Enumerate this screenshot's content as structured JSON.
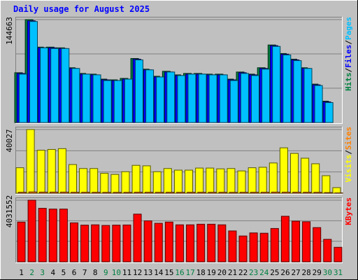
{
  "chart_data": {
    "type": "bar",
    "title": "Daily usage for August 2025",
    "categories": [
      "1",
      "2",
      "3",
      "4",
      "5",
      "6",
      "7",
      "8",
      "9",
      "10",
      "11",
      "12",
      "13",
      "14",
      "15",
      "16",
      "17",
      "18",
      "19",
      "20",
      "21",
      "22",
      "23",
      "24",
      "25",
      "26",
      "27",
      "28",
      "29",
      "30",
      "31"
    ],
    "weekend_days": [
      "2",
      "3",
      "9",
      "10",
      "16",
      "17",
      "23",
      "24",
      "30",
      "31"
    ],
    "panels": [
      {
        "id": "requests",
        "max_label": "144663",
        "ymax": 144663,
        "series": [
          {
            "name": "Hits",
            "color": "#008040",
            "values": [
              70000,
              144663,
              106000,
              106000,
              105000,
              77000,
              69000,
              68000,
              61000,
              60000,
              62000,
              90000,
              75000,
              65000,
              72000,
              67000,
              69000,
              69000,
              68000,
              68000,
              61000,
              71000,
              68000,
              77000,
              109000,
              97000,
              89000,
              77000,
              54000,
              30000,
              0
            ]
          },
          {
            "name": "Files",
            "color": "#0000ff",
            "values": [
              69000,
              143000,
              105000,
              105000,
              104000,
              76000,
              68000,
              67000,
              60000,
              59000,
              61000,
              89000,
              74000,
              64000,
              71000,
              66000,
              68000,
              68000,
              67000,
              67000,
              60000,
              70000,
              67000,
              76000,
              108000,
              96000,
              88000,
              76000,
              53000,
              29000,
              0
            ]
          },
          {
            "name": "Pages",
            "color": "#00c0ff",
            "values": [
              68000,
              142000,
              105000,
              104000,
              104000,
              76000,
              68000,
              67000,
              59000,
              59000,
              61000,
              88000,
              74000,
              64000,
              71000,
              66000,
              68000,
              68000,
              67000,
              67000,
              59000,
              69000,
              66000,
              75000,
              107000,
              95000,
              87000,
              76000,
              52000,
              28000,
              0
            ]
          }
        ],
        "y_labels": [
          "Pages",
          "Files",
          "Hits"
        ]
      },
      {
        "id": "visitors",
        "max_label": "40027",
        "ymax": 40027,
        "series": [
          {
            "name": "Visits",
            "color": "#ffff00",
            "values": [
              16000,
              40027,
              27000,
              27500,
              28000,
              18000,
              15500,
              15500,
              12500,
              11800,
              13500,
              17500,
              17200,
              13500,
              15500,
              14500,
              14500,
              15800,
              15800,
              15300,
              15500,
              14000,
              16000,
              16300,
              19000,
              28500,
              25000,
              22000,
              18500,
              11000,
              3500
            ]
          },
          {
            "name": "Sites",
            "color": "#ff8000",
            "values": [
              600,
              800,
              700,
              700,
              700,
              600,
              600,
              600,
              550,
              550,
              560,
              640,
              620,
              580,
              600,
              590,
              600,
              610,
              600,
              600,
              560,
              600,
              600,
              620,
              700,
              680,
              650,
              630,
              580,
              400,
              200
            ]
          }
        ],
        "y_labels": [
          "Sites",
          "Visits"
        ]
      },
      {
        "id": "kbytes",
        "max_label": "4031552",
        "ymax": 4031552,
        "series": [
          {
            "name": "KBytes",
            "color": "#ff0000",
            "values": [
              2600000,
              4031552,
              3500000,
              3450000,
              3450000,
              2550000,
              2400000,
              2420000,
              2380000,
              2400000,
              2410000,
              3120000,
              2680000,
              2520000,
              2600000,
              2420000,
              2420000,
              2460000,
              2460000,
              2420000,
              2020000,
              1690000,
              1890000,
              1870000,
              2180000,
              2980000,
              2660000,
              2620000,
              2240000,
              1470000,
              950000
            ]
          }
        ],
        "y_labels": [
          "KBytes"
        ]
      }
    ]
  }
}
